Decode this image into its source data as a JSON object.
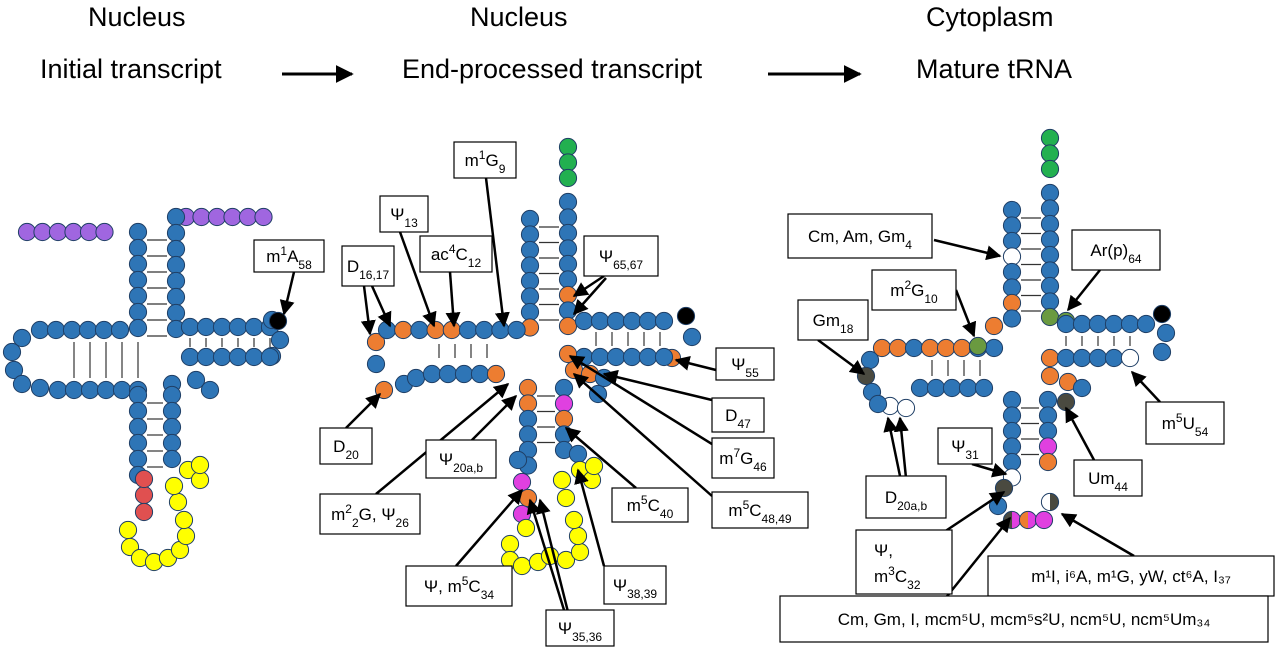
{
  "panels": [
    {
      "location": "Nucleus",
      "stage": "Initial transcript"
    },
    {
      "location": "Nucleus",
      "stage": "End-processed transcript"
    },
    {
      "location": "Cytoplasm",
      "stage": "Mature tRNA"
    }
  ],
  "colors": {
    "stem": "#2E75B6",
    "modification": "#ED7D31",
    "leader_trailer": "#A066E0",
    "intron": "#FFFF00",
    "intron_splice": "#E05050",
    "cca": "#22B050",
    "magenta": "#E040E0",
    "dark": "#4A4A40",
    "green_mod": "#6A9A40",
    "white": "#FFFFFF",
    "black": "#000000"
  },
  "labels": {
    "m1A58": {
      "base": "m",
      "sup": "1",
      "main": "A",
      "sub": "58"
    },
    "D1617": {
      "base": "D",
      "sub": "16,17"
    },
    "psi13": {
      "base": "Ψ",
      "sub": "13"
    },
    "ac4C12": {
      "base": "ac",
      "sup": "4",
      "main": "C",
      "sub": "12"
    },
    "m1G9": {
      "base": "m",
      "sup": "1",
      "main": "G",
      "sub": "9"
    },
    "psi6567": {
      "base": "Ψ",
      "sub": "65,67"
    },
    "D20": {
      "base": "D",
      "sub": "20"
    },
    "psi20ab": {
      "base": "Ψ",
      "sub": "20a,b"
    },
    "m22G26": {
      "base": "m",
      "sup": "2",
      "main": "",
      "sub": "2",
      "tail": "G, Ψ",
      "tailsub": "26"
    },
    "psi55": {
      "base": "Ψ",
      "sub": "55"
    },
    "D47": {
      "base": "D",
      "sub": "47"
    },
    "m7G46": {
      "base": "m",
      "sup": "7",
      "main": "G",
      "sub": "46"
    },
    "m5C40": {
      "base": "m",
      "sup": "5",
      "main": "C",
      "sub": "40"
    },
    "m5C4849": {
      "base": "m",
      "sup": "5",
      "main": "C",
      "sub": "48,49"
    },
    "psim5C34": {
      "base": "Ψ, m",
      "sup": "5",
      "main": "C",
      "sub": "34"
    },
    "psi3839": {
      "base": "Ψ",
      "sub": "38,39"
    },
    "psi3536": {
      "base": "Ψ",
      "sub": "35,36"
    },
    "CmAmGm4": {
      "base": "Cm, Am, Gm",
      "sub": "4"
    },
    "Arp64": {
      "base": "Ar(p)",
      "sub": "64"
    },
    "m2G10": {
      "base": "m",
      "sup": "2",
      "main": "G",
      "sub": "10"
    },
    "Gm18": {
      "base": "Gm",
      "sub": "18"
    },
    "psi31": {
      "base": "Ψ",
      "sub": "31"
    },
    "m5U54": {
      "base": "m",
      "sup": "5",
      "main": "U",
      "sub": "54"
    },
    "Um44": {
      "base": "Um",
      "sub": "44"
    },
    "D20ab": {
      "base": "D",
      "sub": "20a,b"
    },
    "psim3C32_line1": "Ψ,",
    "psim3C32": {
      "base": "m",
      "sup": "3",
      "main": "C",
      "sub": "32"
    },
    "pos37": "m¹I, i⁶A, m¹G, yW, ct⁶A, I₃₇",
    "pos34": "Cm, Gm, I,  mcm⁵U, mcm⁵s²U, ncm⁵U, ncm⁵Um₃₄"
  }
}
